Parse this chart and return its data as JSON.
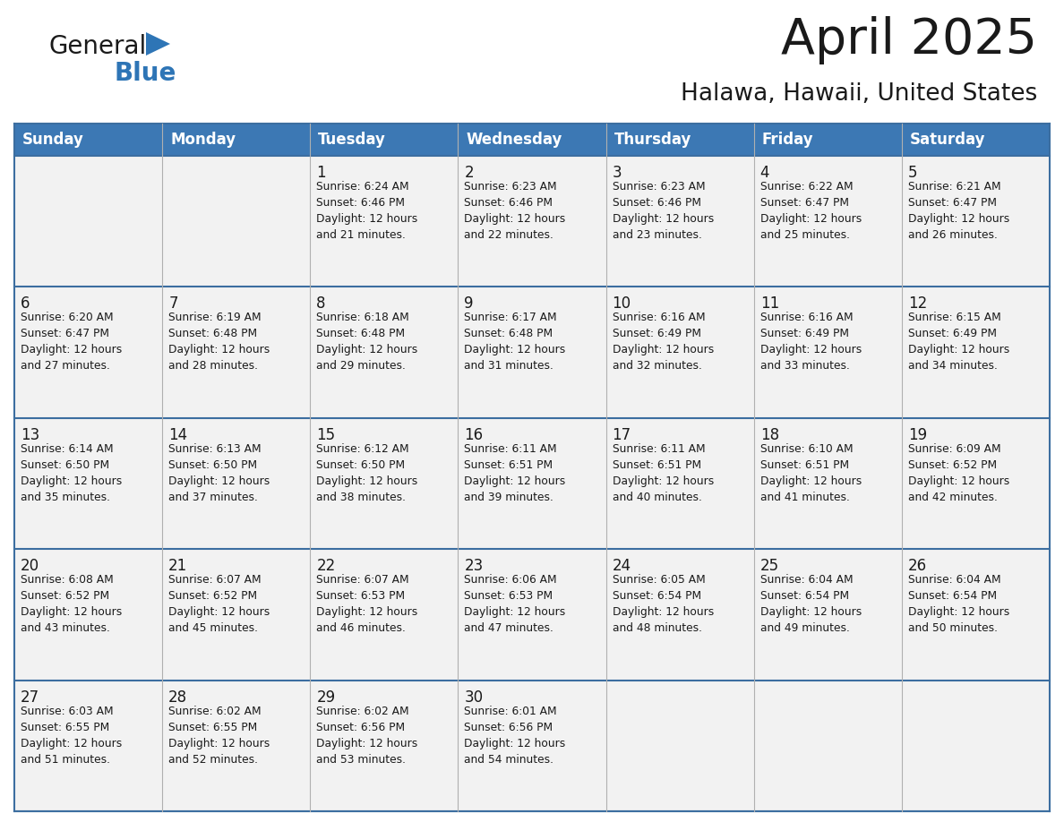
{
  "title": "April 2025",
  "subtitle": "Halawa, Hawaii, United States",
  "header_bg": "#3C78B4",
  "header_text_color": "#FFFFFF",
  "row_bg": "#F2F2F2",
  "border_color": "#3C6EA0",
  "cell_divider_color": "#B0B0B0",
  "days_of_week": [
    "Sunday",
    "Monday",
    "Tuesday",
    "Wednesday",
    "Thursday",
    "Friday",
    "Saturday"
  ],
  "calendar": [
    [
      {
        "day": "",
        "info": ""
      },
      {
        "day": "",
        "info": ""
      },
      {
        "day": "1",
        "info": "Sunrise: 6:24 AM\nSunset: 6:46 PM\nDaylight: 12 hours\nand 21 minutes."
      },
      {
        "day": "2",
        "info": "Sunrise: 6:23 AM\nSunset: 6:46 PM\nDaylight: 12 hours\nand 22 minutes."
      },
      {
        "day": "3",
        "info": "Sunrise: 6:23 AM\nSunset: 6:46 PM\nDaylight: 12 hours\nand 23 minutes."
      },
      {
        "day": "4",
        "info": "Sunrise: 6:22 AM\nSunset: 6:47 PM\nDaylight: 12 hours\nand 25 minutes."
      },
      {
        "day": "5",
        "info": "Sunrise: 6:21 AM\nSunset: 6:47 PM\nDaylight: 12 hours\nand 26 minutes."
      }
    ],
    [
      {
        "day": "6",
        "info": "Sunrise: 6:20 AM\nSunset: 6:47 PM\nDaylight: 12 hours\nand 27 minutes."
      },
      {
        "day": "7",
        "info": "Sunrise: 6:19 AM\nSunset: 6:48 PM\nDaylight: 12 hours\nand 28 minutes."
      },
      {
        "day": "8",
        "info": "Sunrise: 6:18 AM\nSunset: 6:48 PM\nDaylight: 12 hours\nand 29 minutes."
      },
      {
        "day": "9",
        "info": "Sunrise: 6:17 AM\nSunset: 6:48 PM\nDaylight: 12 hours\nand 31 minutes."
      },
      {
        "day": "10",
        "info": "Sunrise: 6:16 AM\nSunset: 6:49 PM\nDaylight: 12 hours\nand 32 minutes."
      },
      {
        "day": "11",
        "info": "Sunrise: 6:16 AM\nSunset: 6:49 PM\nDaylight: 12 hours\nand 33 minutes."
      },
      {
        "day": "12",
        "info": "Sunrise: 6:15 AM\nSunset: 6:49 PM\nDaylight: 12 hours\nand 34 minutes."
      }
    ],
    [
      {
        "day": "13",
        "info": "Sunrise: 6:14 AM\nSunset: 6:50 PM\nDaylight: 12 hours\nand 35 minutes."
      },
      {
        "day": "14",
        "info": "Sunrise: 6:13 AM\nSunset: 6:50 PM\nDaylight: 12 hours\nand 37 minutes."
      },
      {
        "day": "15",
        "info": "Sunrise: 6:12 AM\nSunset: 6:50 PM\nDaylight: 12 hours\nand 38 minutes."
      },
      {
        "day": "16",
        "info": "Sunrise: 6:11 AM\nSunset: 6:51 PM\nDaylight: 12 hours\nand 39 minutes."
      },
      {
        "day": "17",
        "info": "Sunrise: 6:11 AM\nSunset: 6:51 PM\nDaylight: 12 hours\nand 40 minutes."
      },
      {
        "day": "18",
        "info": "Sunrise: 6:10 AM\nSunset: 6:51 PM\nDaylight: 12 hours\nand 41 minutes."
      },
      {
        "day": "19",
        "info": "Sunrise: 6:09 AM\nSunset: 6:52 PM\nDaylight: 12 hours\nand 42 minutes."
      }
    ],
    [
      {
        "day": "20",
        "info": "Sunrise: 6:08 AM\nSunset: 6:52 PM\nDaylight: 12 hours\nand 43 minutes."
      },
      {
        "day": "21",
        "info": "Sunrise: 6:07 AM\nSunset: 6:52 PM\nDaylight: 12 hours\nand 45 minutes."
      },
      {
        "day": "22",
        "info": "Sunrise: 6:07 AM\nSunset: 6:53 PM\nDaylight: 12 hours\nand 46 minutes."
      },
      {
        "day": "23",
        "info": "Sunrise: 6:06 AM\nSunset: 6:53 PM\nDaylight: 12 hours\nand 47 minutes."
      },
      {
        "day": "24",
        "info": "Sunrise: 6:05 AM\nSunset: 6:54 PM\nDaylight: 12 hours\nand 48 minutes."
      },
      {
        "day": "25",
        "info": "Sunrise: 6:04 AM\nSunset: 6:54 PM\nDaylight: 12 hours\nand 49 minutes."
      },
      {
        "day": "26",
        "info": "Sunrise: 6:04 AM\nSunset: 6:54 PM\nDaylight: 12 hours\nand 50 minutes."
      }
    ],
    [
      {
        "day": "27",
        "info": "Sunrise: 6:03 AM\nSunset: 6:55 PM\nDaylight: 12 hours\nand 51 minutes."
      },
      {
        "day": "28",
        "info": "Sunrise: 6:02 AM\nSunset: 6:55 PM\nDaylight: 12 hours\nand 52 minutes."
      },
      {
        "day": "29",
        "info": "Sunrise: 6:02 AM\nSunset: 6:56 PM\nDaylight: 12 hours\nand 53 minutes."
      },
      {
        "day": "30",
        "info": "Sunrise: 6:01 AM\nSunset: 6:56 PM\nDaylight: 12 hours\nand 54 minutes."
      },
      {
        "day": "",
        "info": ""
      },
      {
        "day": "",
        "info": ""
      },
      {
        "day": "",
        "info": ""
      }
    ]
  ],
  "logo_general_color": "#1a1a1a",
  "logo_blue_color": "#2E75B6",
  "logo_triangle_color": "#2E75B6",
  "figwidth": 11.88,
  "figheight": 9.18,
  "dpi": 100
}
